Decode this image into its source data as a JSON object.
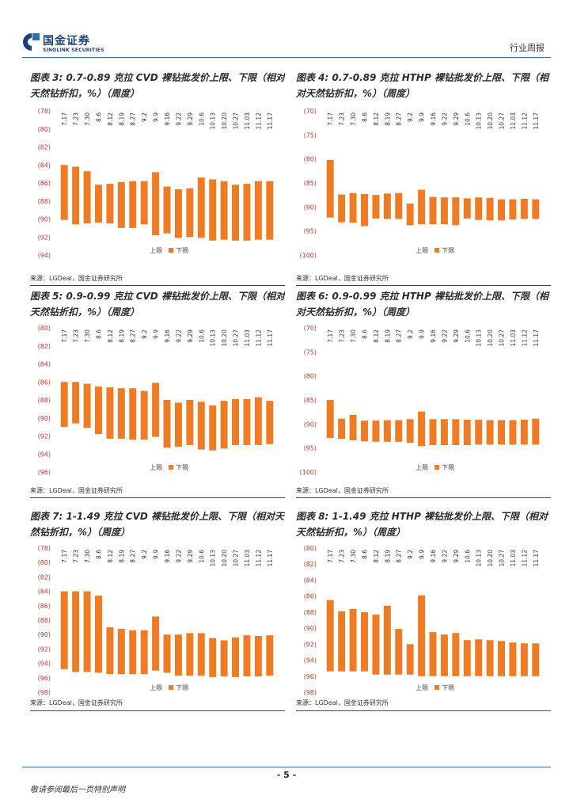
{
  "header": {
    "logo_cn": "国金证券",
    "logo_en": "SINOLINK SECURITIES",
    "tag": "行业周报"
  },
  "colors": {
    "bar": "#ef7b24",
    "tick": "#c0392b",
    "rule": "#2f6fa8",
    "logo": "#1a3f7a"
  },
  "categories": [
    "7.17",
    "7.23",
    "7.30",
    "8.6",
    "8.12",
    "8.19",
    "8.27",
    "9.2",
    "9.9",
    "9.16",
    "9.22",
    "9.29",
    "10.6",
    "10.13",
    "10.20",
    "10.27",
    "11.03",
    "11.12",
    "11.17"
  ],
  "legend": {
    "upper": "上限",
    "lower": "下限"
  },
  "charts": [
    {
      "title": "图表 3:  0.7-0.89 克拉 CVD 裸钻批发价上限、下限（相对天然钻折扣，%）（周度）",
      "source": "来源：LGDeal，国金证券研究所",
      "chart_data": {
        "type": "bar",
        "ylim": [
          -94,
          -78
        ],
        "yticks": [
          "(78)",
          "(80)",
          "(82)",
          "(84)",
          "(86)",
          "(88)",
          "(90)",
          "(92)",
          "(94)"
        ],
        "upper": [
          -84,
          -84.2,
          -84.7,
          -86.2,
          -86.1,
          -85.9,
          -85.8,
          -85.8,
          -84.8,
          -86.4,
          -86.7,
          -86.6,
          -85.4,
          -85.6,
          -85.8,
          -86.2,
          -86.1,
          -85.8,
          -85.8
        ],
        "lower": [
          -90.1,
          -90.6,
          -90.5,
          -90.4,
          -90.5,
          -91,
          -91,
          -90.6,
          -91.8,
          -91.6,
          -92.1,
          -92,
          -92.1,
          -92.4,
          -92.3,
          -92.4,
          -92.4,
          -92.3,
          -92.3
        ]
      }
    },
    {
      "title": "图表 4:  0.7-0.89 克拉 HTHP 裸钻批发价上限、下限（相对天然钻折扣，%）（周度）",
      "source": "来源：LGDeal，国金证券研究所",
      "chart_data": {
        "type": "bar",
        "ylim": [
          -100,
          -70
        ],
        "yticks": [
          "(70)",
          "(75)",
          "(80)",
          "(85)",
          "(90)",
          "(95)",
          "(100)"
        ],
        "upper": [
          -80.2,
          -87.4,
          -87.1,
          -87.3,
          -87.5,
          -87.2,
          -87.1,
          -89.3,
          -86.4,
          -87.9,
          -88,
          -88,
          -88.2,
          -88,
          -88.1,
          -88.4,
          -88.4,
          -88.3,
          -88.4
        ],
        "lower": [
          -92.2,
          -93.2,
          -93.3,
          -94,
          -92.4,
          -92.5,
          -92.5,
          -93.8,
          -93.6,
          -93.6,
          -93.6,
          -93.8,
          -92.4,
          -92.7,
          -92.8,
          -92.8,
          -92.6,
          -92.5,
          -92.5
        ]
      }
    },
    {
      "title": "图表 5:  0.9-0.99 克拉 CVD 裸钻批发价上限、下限（相对天然钻折扣，%）（周度）",
      "source": "来源：LGDeal，国金证券研究所",
      "chart_data": {
        "type": "bar",
        "ylim": [
          -96,
          -80
        ],
        "yticks": [
          "(80)",
          "(82)",
          "(84)",
          "(86)",
          "(88)",
          "(90)",
          "(92)",
          "(94)",
          "(96)"
        ],
        "upper": [
          -86,
          -86,
          -86.2,
          -86.5,
          -86.6,
          -86.7,
          -86.7,
          -87,
          -86.1,
          -88,
          -88.3,
          -88,
          -88.2,
          -88.6,
          -88.1,
          -87.9,
          -87.9,
          -87.7,
          -88.1
        ],
        "lower": [
          -91,
          -90.6,
          -91.1,
          -91.8,
          -92.3,
          -92.3,
          -92.4,
          -92.4,
          -92.1,
          -93.3,
          -93.2,
          -93,
          -93.5,
          -93.6,
          -93.4,
          -93,
          -93,
          -93,
          -92.9
        ]
      }
    },
    {
      "title": "图表 6:  0.9-0.99 克拉 HTHP 裸钻批发价上限、下限（相对天然钻折扣，%）（周度）",
      "source": "来源：LGDeal，国金证券研究所",
      "chart_data": {
        "type": "bar",
        "ylim": [
          -100,
          -70
        ],
        "yticks": [
          "(70)",
          "(75)",
          "(80)",
          "(85)",
          "(90)",
          "(95)",
          "(100)"
        ],
        "upper": [
          -85,
          -88.9,
          -88.1,
          -89.3,
          -89.3,
          -89.2,
          -89.2,
          -89,
          -87.4,
          -89,
          -89,
          -89,
          -89.1,
          -89.1,
          -89.2,
          -89.2,
          -89.2,
          -89.1,
          -88.9
        ],
        "lower": [
          -92.9,
          -93.1,
          -93.4,
          -93.6,
          -93.7,
          -93.7,
          -93.7,
          -93.9,
          -94.6,
          -94.4,
          -94.4,
          -94.4,
          -94.4,
          -94.3,
          -94.3,
          -94.3,
          -94.3,
          -94.3,
          -94.3
        ]
      }
    },
    {
      "title": "图表 7:  1-1.49 克拉 CVD 裸钻批发价上限、下限（相对天然钻折扣，%）（周度）",
      "source": "来源：LGDeal，国金证券研究所",
      "chart_data": {
        "type": "bar",
        "ylim": [
          -98,
          -78
        ],
        "yticks": [
          "(78)",
          "(80)",
          "(82)",
          "(84)",
          "(86)",
          "(88)",
          "(90)",
          "(92)",
          "(94)",
          "(96)",
          "(98)"
        ],
        "upper": [
          -84,
          -84,
          -84,
          -84.6,
          -89,
          -89.2,
          -89.4,
          -89.4,
          -87.5,
          -90,
          -90,
          -89.8,
          -89.8,
          -90.5,
          -90.8,
          -90.4,
          -90.1,
          -90.2,
          -90.1
        ],
        "lower": [
          -94.8,
          -95.2,
          -95.2,
          -95.3,
          -95.5,
          -95.5,
          -95.5,
          -95.5,
          -95,
          -95.3,
          -95.7,
          -95.7,
          -95.7,
          -95.9,
          -95.8,
          -95.9,
          -95.8,
          -95.8,
          -95.7
        ]
      }
    },
    {
      "title": "图表 8:  1-1.49 克拉 HTHP 裸钻批发价上限、下限（相对天然钻折扣，%）（周度）",
      "source": "来源：LGDeal，国金证券研究所",
      "chart_data": {
        "type": "bar",
        "ylim": [
          -98,
          -80
        ],
        "yticks": [
          "(80)",
          "(82)",
          "(84)",
          "(86)",
          "(88)",
          "(90)",
          "(92)",
          "(94)",
          "(96)",
          "(98)"
        ],
        "upper": [
          -86.5,
          -87.9,
          -87.6,
          -88,
          -88.3,
          -87.2,
          -90.1,
          -92,
          -85.9,
          -90.5,
          -90.8,
          -90.6,
          -91.5,
          -91.4,
          -91.5,
          -91.6,
          -91.8,
          -91.9,
          -91.9
        ],
        "lower": [
          -95.4,
          -95.4,
          -95.4,
          -95.4,
          -95.8,
          -95.8,
          -95.8,
          -95.8,
          -96,
          -96,
          -96,
          -96,
          -96,
          -96,
          -96,
          -96,
          -96,
          -96,
          -96
        ]
      }
    }
  ],
  "page": {
    "number": "- 5 -",
    "footer": "敬请参阅最后一页特别声明"
  }
}
